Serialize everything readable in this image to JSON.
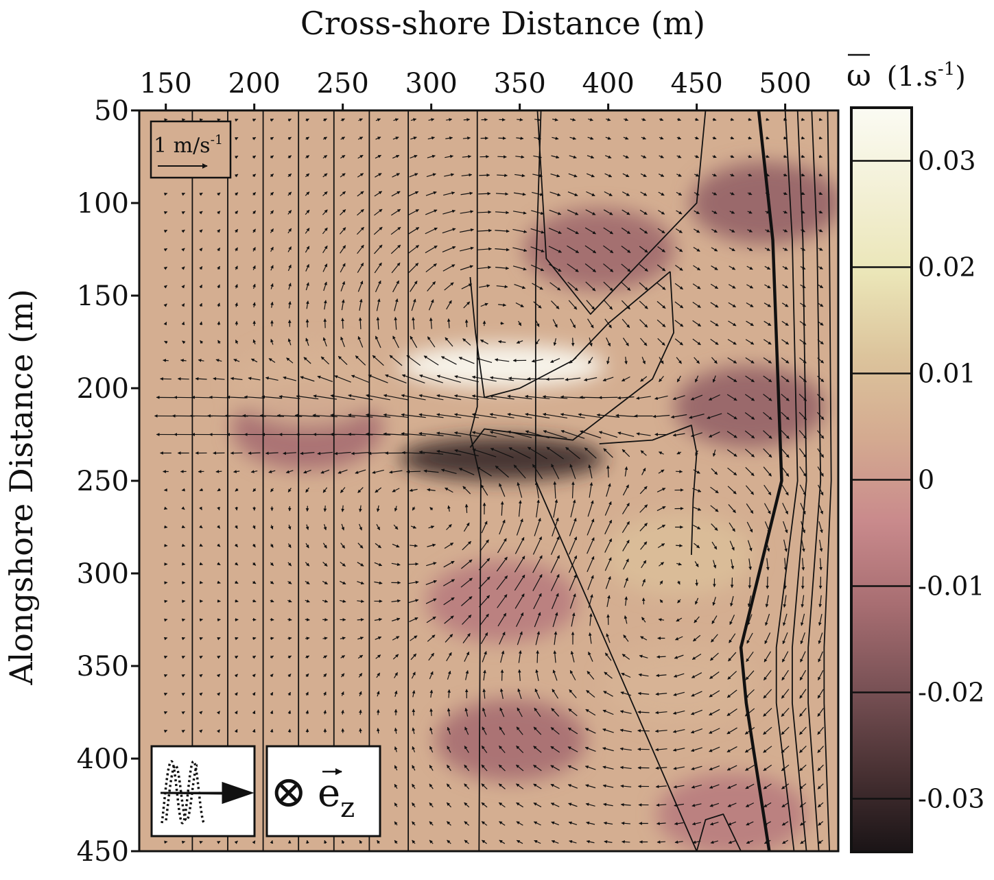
{
  "chart_data": {
    "type": "heatmap",
    "title": "",
    "xlabel": "Cross-shore Distance (m)",
    "ylabel": "Alongshore Distance (m)",
    "xlim": [
      135,
      530
    ],
    "ylim": [
      50,
      450
    ],
    "y_axis_inverted": true,
    "x_axis_position": "top",
    "grid": false,
    "x_ticks": [
      "150",
      "200",
      "250",
      "300",
      "350",
      "400",
      "450",
      "500"
    ],
    "x_tick_values": [
      150,
      200,
      250,
      300,
      350,
      400,
      450,
      500
    ],
    "y_ticks": [
      "50",
      "100",
      "150",
      "200",
      "250",
      "300",
      "350",
      "400",
      "450"
    ],
    "y_tick_values": [
      50,
      100,
      150,
      200,
      250,
      300,
      350,
      400,
      450
    ],
    "colorbar": {
      "label_symbol": "ω",
      "label_unit": "(1.s",
      "label_exp": "-1",
      "label_close": ")",
      "range": [
        -0.035,
        0.035
      ],
      "ticks": [
        "0.03",
        "0.02",
        "0.01",
        "0",
        "-0.01",
        "-0.02",
        "-0.03"
      ],
      "tick_values": [
        0.03,
        0.02,
        0.01,
        0,
        -0.01,
        -0.02,
        -0.03
      ],
      "colors": [
        "#1a1416",
        "#4a3234",
        "#7a5256",
        "#a86e72",
        "#c98a8c",
        "#d4aa90",
        "#dcc49c",
        "#ebe6b8",
        "#f3f0d6",
        "#fbfbf3"
      ]
    },
    "vorticity_features": [
      {
        "name": "positive core",
        "x": 340,
        "y": 188,
        "value": 0.035
      },
      {
        "name": "negative core",
        "x": 340,
        "y": 238,
        "value": -0.03
      },
      {
        "name": "negative band",
        "x": 230,
        "y": 222,
        "value": -0.012
      },
      {
        "name": "positive band",
        "x": 230,
        "y": 198,
        "value": 0.006
      },
      {
        "name": "negative patch",
        "x": 395,
        "y": 125,
        "value": -0.013
      },
      {
        "name": "negative shoreline strip",
        "x": 489,
        "y": 100,
        "value": -0.015
      },
      {
        "name": "negative shoreline strip",
        "x": 480,
        "y": 210,
        "value": -0.015
      },
      {
        "name": "negative patch",
        "x": 345,
        "y": 390,
        "value": -0.012
      },
      {
        "name": "negative patch",
        "x": 340,
        "y": 315,
        "value": -0.008
      },
      {
        "name": "positive patch",
        "x": 440,
        "y": 290,
        "value": 0.01
      },
      {
        "name": "positive patch",
        "x": 440,
        "y": 360,
        "value": 0.007
      },
      {
        "name": "negative patch",
        "x": 470,
        "y": 430,
        "value": -0.008
      }
    ],
    "vector_reference": {
      "label": "1 m/s",
      "exp": "-1",
      "speed": 1
    },
    "depth_contours": [
      {
        "x": [
          165,
          165
        ]
      },
      {
        "x": [
          185,
          185
        ]
      },
      {
        "x": [
          205,
          205
        ]
      },
      {
        "x": [
          225,
          225
        ]
      },
      {
        "x": [
          245,
          245
        ]
      },
      {
        "x": [
          265,
          265
        ]
      },
      {
        "x": [
          287,
          287
        ]
      },
      {
        "x": [
          326,
          326,
          322,
          328,
          327
        ],
        "y": [
          50,
          210,
          225,
          250,
          450
        ]
      },
      {
        "x": [
          362,
          359,
          359,
          450
        ],
        "y": [
          50,
          140,
          250,
          450
        ]
      },
      {
        "x": [
          455,
          450,
          400,
          390,
          365,
          360
        ],
        "y": [
          50,
          100,
          150,
          160,
          130,
          50
        ]
      },
      {
        "x": [
          322,
          325,
          330,
          350,
          380,
          400,
          435
        ],
        "y": [
          140,
          170,
          205,
          200,
          185,
          165,
          137
        ]
      },
      {
        "x": [
          435,
          437,
          425,
          380,
          330,
          322
        ],
        "y": [
          137,
          170,
          195,
          228,
          222,
          232
        ]
      },
      {
        "x": [
          447,
          448,
          450,
          447,
          425,
          395
        ],
        "y": [
          290,
          260,
          235,
          220,
          228,
          230
        ]
      },
      {
        "x": [
          485,
          493,
          498,
          475,
          478,
          491
        ],
        "y": [
          50,
          120,
          250,
          340,
          370,
          450
        ],
        "bold": true
      },
      {
        "x": [
          500,
          504,
          507,
          495,
          495,
          505
        ],
        "y": [
          50,
          120,
          250,
          340,
          370,
          450
        ]
      },
      {
        "x": [
          507,
          510,
          512,
          504,
          504,
          512
        ],
        "y": [
          50,
          120,
          250,
          340,
          370,
          450
        ]
      },
      {
        "x": [
          515,
          518,
          520,
          513,
          513,
          519
        ],
        "y": [
          50,
          120,
          250,
          340,
          370,
          450
        ]
      },
      {
        "x": [
          524,
          525,
          526,
          522,
          522,
          525
        ],
        "y": [
          50,
          120,
          250,
          340,
          370,
          450
        ]
      },
      {
        "x": [
          450,
          455,
          465,
          475
        ],
        "y": [
          450,
          433,
          430,
          450
        ]
      }
    ],
    "insets": {
      "wave_direction": "incident waves propagating in +x",
      "unit_vector": {
        "symbol": "⊗",
        "vector_label": "e",
        "subscript": "z"
      }
    }
  }
}
